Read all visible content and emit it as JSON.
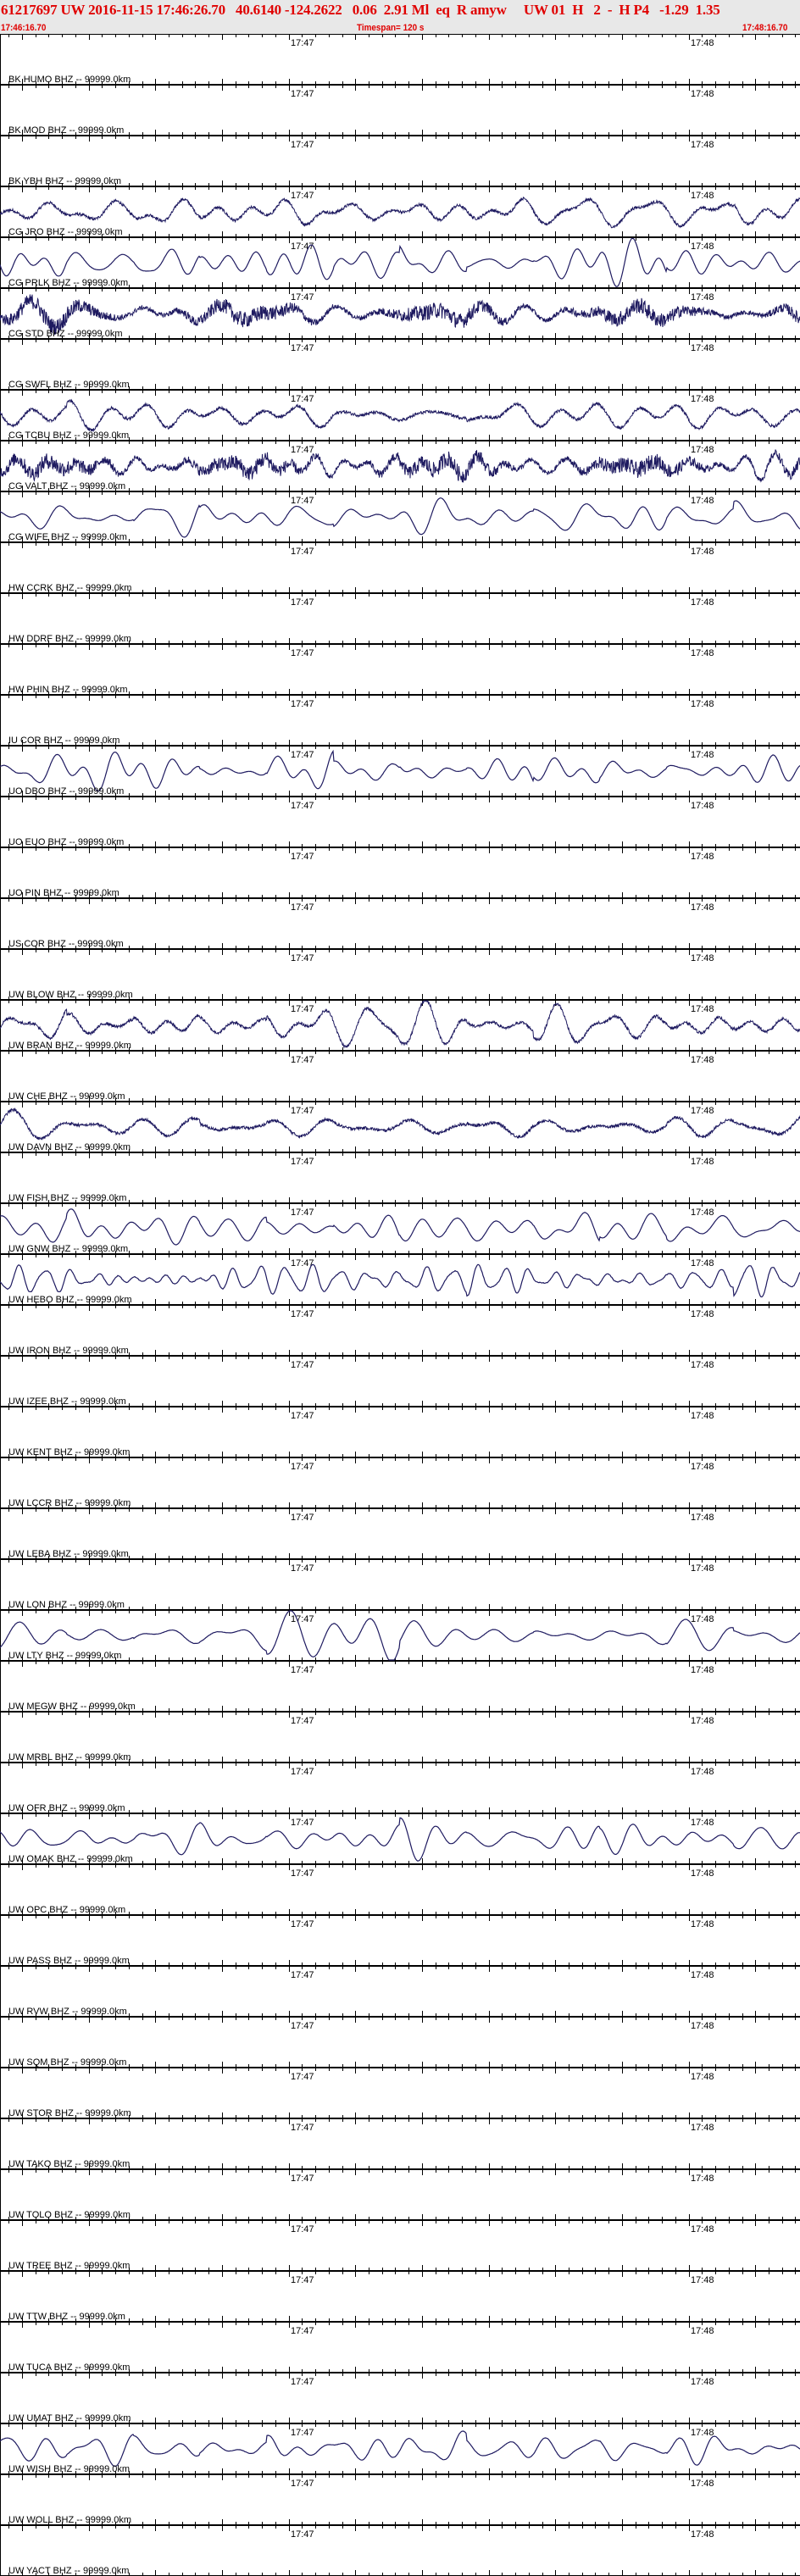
{
  "header": {
    "title": "61217697 UW 2016-11-15 17:46:26.70   40.6140 -124.2622   0.06  2.91 Ml  eq  R amyw     UW 01  H   2  -  H P4   -1.29  1.35",
    "start_time": "17:46:16.70",
    "timespan": "Timespan= 120 s",
    "end_time": "17:48:16.70"
  },
  "axis": {
    "start_seconds": 16.7,
    "span_seconds": 120,
    "major_tick_seconds": 10,
    "minor_tick_seconds": 2,
    "time_labels": [
      {
        "text": "17:47",
        "seconds": 60
      },
      {
        "text": "17:48",
        "seconds": 120
      }
    ]
  },
  "colors": {
    "header_bg": "#e8e8e8",
    "header_text": "#e00000",
    "trace": "#1e1a60",
    "axis": "#000000"
  },
  "stations": [
    {
      "label": "BK HUMO BHZ -- 99999.0km",
      "waveform": null
    },
    {
      "label": "BK MOD BHZ -- 99999.0km",
      "waveform": null
    },
    {
      "label": "BK YBH BHZ -- 99999.0km",
      "waveform": "noisy"
    },
    {
      "label": "CG JRO BHZ -- 99999.0km",
      "waveform": "smooth"
    },
    {
      "label": "CG PRLK BHZ -- 99999.0km",
      "waveform": "very-noisy"
    },
    {
      "label": "CG STD BHZ -- 99999.0km",
      "waveform": null
    },
    {
      "label": "CG SWFL BHZ -- 99999.0km",
      "waveform": "noisy"
    },
    {
      "label": "CG TCBU BHZ -- 99999.0km",
      "waveform": "very-noisy"
    },
    {
      "label": "CG VALT BHZ -- 99999.0km",
      "waveform": "smooth"
    },
    {
      "label": "CG WIFE BHZ -- 99999.0km",
      "waveform": null
    },
    {
      "label": "HW CCRK BHZ -- 99999.0km",
      "waveform": null
    },
    {
      "label": "HW DDRF BHZ -- 99999.0km",
      "waveform": null
    },
    {
      "label": "HW PHIN BHZ -- 99999.0km",
      "waveform": null
    },
    {
      "label": "IU COR BHZ -- 99999.0km",
      "waveform": "smooth"
    },
    {
      "label": "UO DBO BHZ -- 99999.0km",
      "waveform": null
    },
    {
      "label": "UO EUO BHZ -- 99999.0km",
      "waveform": null
    },
    {
      "label": "UO PIN BHZ -- 99999.0km",
      "waveform": null
    },
    {
      "label": "US COR BHZ -- 99999.0km",
      "waveform": null
    },
    {
      "label": "UW BLOW BHZ -- 99999.0km",
      "waveform": "noisy"
    },
    {
      "label": "UW BRAN BHZ -- 99999.0km",
      "waveform": null
    },
    {
      "label": "UW CHE BHZ -- 99999.0km",
      "waveform": "noisy"
    },
    {
      "label": "UW DAVN BHZ -- 99999.0km",
      "waveform": null
    },
    {
      "label": "UW FISH BHZ -- 99999.0km",
      "waveform": "smooth"
    },
    {
      "label": "UW GNW BHZ -- 99999.0km",
      "waveform": "jagged"
    },
    {
      "label": "UW HEBO BHZ -- 99999.0km",
      "waveform": null
    },
    {
      "label": "UW IRON BHZ -- 99999.0km",
      "waveform": null
    },
    {
      "label": "UW IZEE BHZ -- 99999.0km",
      "waveform": null
    },
    {
      "label": "UW KENT BHZ -- 99999.0km",
      "waveform": null
    },
    {
      "label": "UW LCCR BHZ -- 99999.0km",
      "waveform": null
    },
    {
      "label": "UW LEBA BHZ -- 99999.0km",
      "waveform": null
    },
    {
      "label": "UW LON BHZ -- 99999.0km",
      "waveform": "smooth"
    },
    {
      "label": "UW LTY BHZ -- 99999.0km",
      "waveform": null
    },
    {
      "label": "UW MEGW BHZ -- 99999.0km",
      "waveform": null
    },
    {
      "label": "UW MRBL BHZ -- 99999.0km",
      "waveform": null
    },
    {
      "label": "UW OFR BHZ -- 99999.0km",
      "waveform": "smooth"
    },
    {
      "label": "UW OMAK BHZ -- 99999.0km",
      "waveform": null
    },
    {
      "label": "UW OPC BHZ -- 99999.0km",
      "waveform": null
    },
    {
      "label": "UW PASS BHZ -- 99999.0km",
      "waveform": null
    },
    {
      "label": "UW RVW BHZ -- 99999.0km",
      "waveform": null
    },
    {
      "label": "UW SQM BHZ -- 99999.0km",
      "waveform": null
    },
    {
      "label": "UW STOR BHZ -- 99999.0km",
      "waveform": null
    },
    {
      "label": "UW TAKO BHZ -- 99999.0km",
      "waveform": null
    },
    {
      "label": "UW TOLO BHZ -- 99999.0km",
      "waveform": null
    },
    {
      "label": "UW TREE BHZ -- 99999.0km",
      "waveform": null
    },
    {
      "label": "UW TTW BHZ -- 99999.0km",
      "waveform": null
    },
    {
      "label": "UW TUCA BHZ -- 99999.0km",
      "waveform": null
    },
    {
      "label": "UW UMAT BHZ -- 99999.0km",
      "waveform": "smooth"
    },
    {
      "label": "UW WISH BHZ -- 99999.0km",
      "waveform": null
    },
    {
      "label": "UW WOLL BHZ -- 99999.0km",
      "waveform": null
    },
    {
      "label": "UW YACT BHZ -- 99999.0km",
      "waveform": null
    }
  ]
}
